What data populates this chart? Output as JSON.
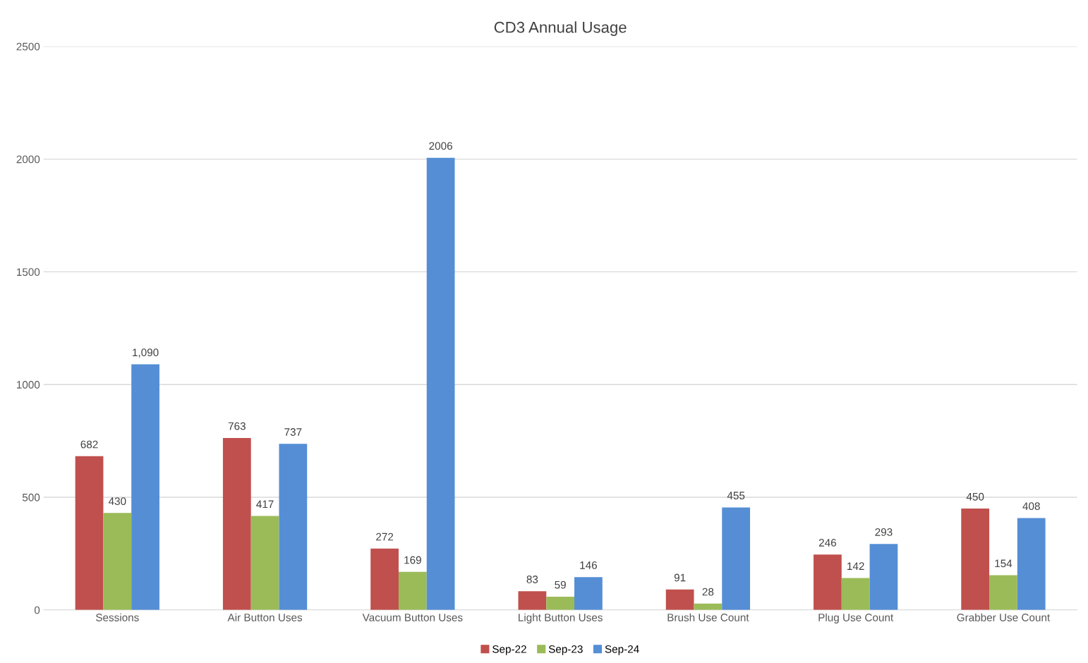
{
  "chart_data": {
    "type": "bar",
    "title": "CD3 Annual Usage",
    "categories": [
      "Sessions",
      "Air Button Uses",
      "Vacuum Button Uses",
      "Light Button Uses",
      "Brush Use Count",
      "Plug Use Count",
      "Grabber Use Count"
    ],
    "series": [
      {
        "name": "Sep-22",
        "color": "#c0504d",
        "values": [
          682,
          763,
          272,
          83,
          91,
          246,
          450
        ],
        "value_labels": [
          "682",
          "763",
          "272",
          "83",
          "91",
          "246",
          "450"
        ]
      },
      {
        "name": "Sep-23",
        "color": "#9bbb59",
        "values": [
          430,
          417,
          169,
          59,
          28,
          142,
          154
        ],
        "value_labels": [
          "430",
          "417",
          "169",
          "59",
          "28",
          "142",
          "154"
        ]
      },
      {
        "name": "Sep-24",
        "color": "#558ed5",
        "values": [
          1090,
          737,
          2006,
          146,
          455,
          293,
          408
        ],
        "value_labels": [
          "1,090",
          "737",
          "2006",
          "146",
          "455",
          "293",
          "408"
        ]
      }
    ],
    "ylim": [
      0,
      2500
    ],
    "yticks": [
      0,
      500,
      1000,
      1500,
      2000,
      2500
    ],
    "grid": "y",
    "legend": "bottom"
  }
}
